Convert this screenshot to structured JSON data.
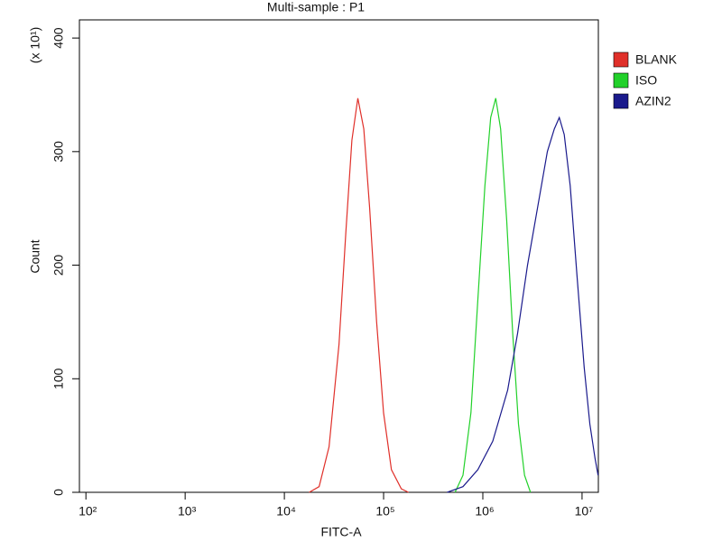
{
  "chart_data": {
    "type": "line",
    "title": "Multi-sample : P1",
    "x_label": "FITC-A",
    "y_label": "Count",
    "y_multiplier": "(x 10¹)",
    "xscale": "log",
    "xlim": [
      86,
      14600000
    ],
    "ylim": [
      0,
      416
    ],
    "xticks": [
      {
        "value": 100,
        "label": "10²"
      },
      {
        "value": 1000,
        "label": "10³"
      },
      {
        "value": 10000,
        "label": "10⁴"
      },
      {
        "value": 100000,
        "label": "10⁵"
      },
      {
        "value": 1000000,
        "label": "10⁶"
      },
      {
        "value": 10000000,
        "label": "10⁷"
      }
    ],
    "yticks": [
      0,
      100,
      200,
      300,
      400
    ],
    "series": [
      {
        "name": "BLANK",
        "color": "#e0302a",
        "x": [
          17800,
          22400,
          28200,
          35500,
          41700,
          47900,
          55000,
          63100,
          72400,
          85100,
          100000,
          120000,
          151000,
          178000
        ],
        "values": [
          0,
          5,
          40,
          130,
          230,
          310,
          347,
          320,
          250,
          150,
          70,
          20,
          3,
          0
        ]
      },
      {
        "name": "ISO",
        "color": "#22d12a",
        "x": [
          525000,
          631000,
          759000,
          891000,
          1050000,
          1200000,
          1350000,
          1510000,
          1740000,
          2000000,
          2290000,
          2630000,
          3020000
        ],
        "values": [
          0,
          15,
          70,
          170,
          270,
          330,
          347,
          320,
          240,
          140,
          60,
          15,
          0
        ]
      },
      {
        "name": "AZIN2",
        "color": "#1a1a8c",
        "x": [
          437000,
          631000,
          891000,
          1260000,
          1780000,
          2240000,
          2820000,
          3550000,
          4470000,
          5250000,
          5890000,
          6610000,
          7590000,
          8910000,
          10500000,
          12000000,
          13500000,
          14500000
        ],
        "values": [
          0,
          5,
          20,
          45,
          90,
          140,
          200,
          250,
          300,
          320,
          330,
          315,
          270,
          190,
          110,
          60,
          30,
          15
        ]
      }
    ]
  }
}
